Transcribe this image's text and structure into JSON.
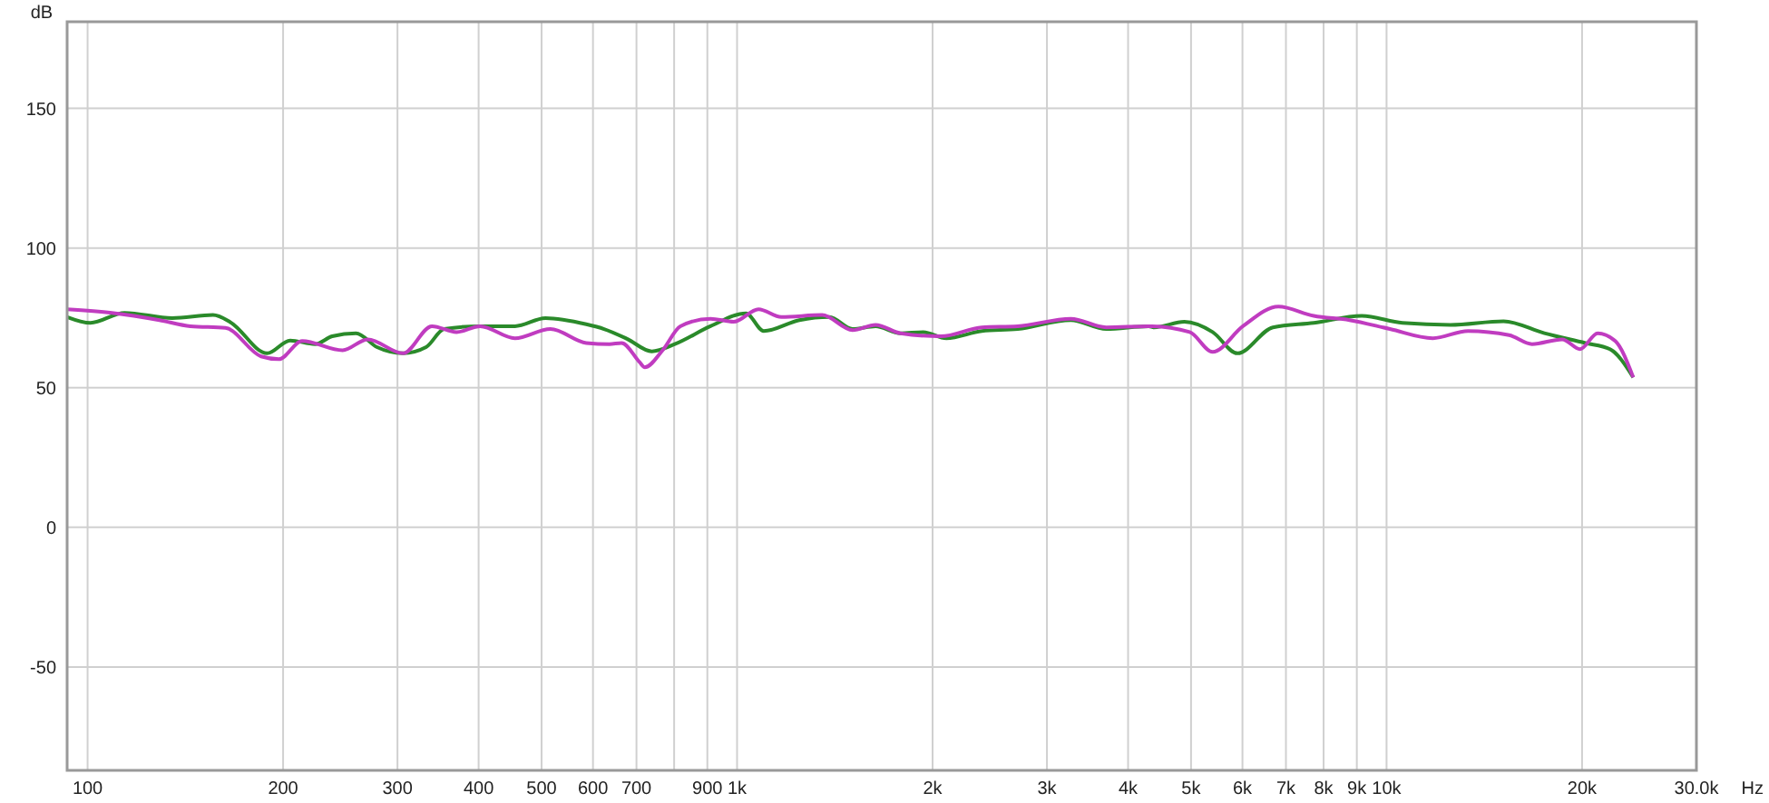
{
  "chart_data": {
    "type": "line",
    "ylabel": "dB",
    "xlabel": "Hz",
    "log": "x",
    "grid": true,
    "marker": "none",
    "line_style": "solid",
    "xlim": [
      93,
      30000
    ],
    "ylim": [
      -87,
      181
    ],
    "xticks": [
      100,
      200,
      300,
      400,
      500,
      600,
      700,
      {
        "value": 800,
        "label": null
      },
      900,
      {
        "value": 1000,
        "label": "1k"
      },
      {
        "value": 2000,
        "label": "2k"
      },
      {
        "value": 3000,
        "label": "3k"
      },
      {
        "value": 4000,
        "label": "4k"
      },
      {
        "value": 5000,
        "label": "5k"
      },
      {
        "value": 6000,
        "label": "6k"
      },
      {
        "value": 7000,
        "label": "7k"
      },
      {
        "value": 8000,
        "label": "8k"
      },
      {
        "value": 9000,
        "label": "9k"
      },
      {
        "value": 10000,
        "label": "10k"
      },
      {
        "value": 20000,
        "label": "20k"
      },
      {
        "value": 30000,
        "label": "30.0k"
      }
    ],
    "yticks": [
      -50,
      0,
      50,
      100,
      150
    ],
    "series": [
      {
        "color": "#2a8a2a",
        "x": [
          93,
          101,
          114,
          135,
          156,
          166,
          189,
          205,
          224,
          238,
          259,
          279,
          306,
          332,
          354,
          402,
          455,
          507,
          586,
          624,
          677,
          739,
          802,
          910,
          1032,
          1099,
          1247,
          1387,
          1506,
          1634,
          1784,
          1935,
          2100,
          2382,
          2704,
          3265,
          3702,
          4303,
          4385,
          4883,
          5398,
          5894,
          6683,
          7727,
          9160,
          10580,
          12540,
          15140,
          17500,
          20230,
          22080,
          23980
        ],
        "values": [
          75.3,
          73.2,
          76.8,
          74.9,
          76,
          73.4,
          62.3,
          66.9,
          65.6,
          68.4,
          69.5,
          64.5,
          62.3,
          64.5,
          71,
          72,
          72,
          74.9,
          72.7,
          71,
          67.5,
          63,
          65.6,
          72,
          76.6,
          70.3,
          74.2,
          75.3,
          71,
          72,
          69.5,
          69.9,
          67.7,
          70.3,
          71,
          74.2,
          71,
          72,
          71.6,
          73.6,
          69.9,
          62.3,
          71.6,
          73.2,
          75.7,
          73.2,
          72.5,
          73.8,
          69.5,
          66,
          63.8,
          53.7
        ]
      },
      {
        "color": "#c03cc0",
        "x": [
          93,
          109,
          129,
          144,
          163,
          185,
          197,
          214,
          247,
          270,
          306,
          339,
          370,
          402,
          455,
          516,
          586,
          636,
          664,
          708,
          721,
          768,
          818,
          910,
          988,
          1079,
          1170,
          1352,
          1506,
          1634,
          1784,
          2061,
          2382,
          2704,
          3265,
          3702,
          4303,
          4976,
          5398,
          6010,
          6814,
          7727,
          8770,
          10120,
          11780,
          13350,
          15440,
          16750,
          18640,
          19860,
          21140,
          22500,
          23980
        ],
        "values": [
          78.1,
          76.8,
          74.2,
          72,
          71.4,
          61.2,
          60.2,
          66.7,
          63.4,
          67.3,
          62.3,
          72,
          69.9,
          72,
          67.7,
          71,
          66,
          65.6,
          66,
          59.1,
          57.3,
          63.4,
          72,
          74.7,
          73.6,
          78.1,
          75.3,
          76,
          70.6,
          72.5,
          69.5,
          68.4,
          71.6,
          72,
          74.7,
          71.6,
          72,
          69.9,
          62.8,
          72,
          79,
          75.7,
          74.2,
          71,
          67.7,
          70.3,
          68.8,
          65.6,
          67.3,
          63.8,
          69.5,
          66.7,
          53.7
        ]
      }
    ]
  }
}
